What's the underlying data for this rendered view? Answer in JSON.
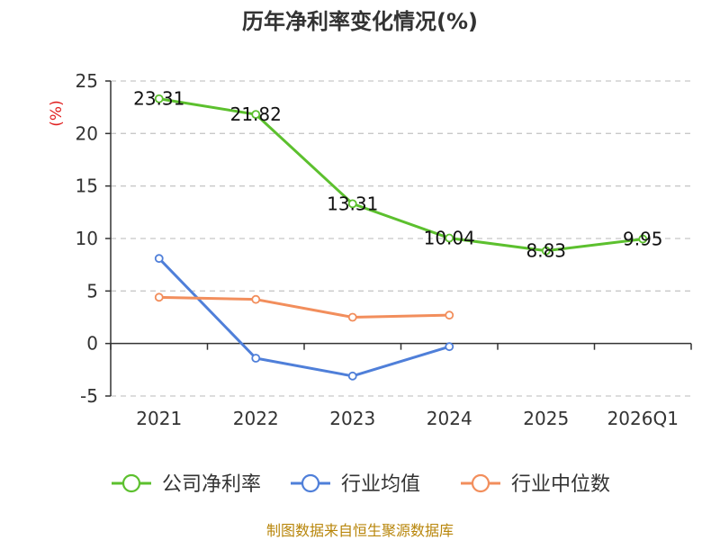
{
  "chart_data": {
    "type": "line",
    "title": "历年净利率变化情况(%)",
    "ylabel": "(%)",
    "categories": [
      "2021",
      "2022",
      "2023",
      "2024",
      "2025",
      "2026Q1"
    ],
    "ylim": [
      -5,
      25
    ],
    "yticks": [
      -5,
      0,
      5,
      10,
      15,
      20,
      25
    ],
    "grid": true,
    "legend_position": "bottom",
    "series": [
      {
        "name": "公司净利率",
        "color": "#5cc02e",
        "values": [
          23.31,
          21.82,
          13.31,
          10.04,
          8.83,
          9.95
        ],
        "labels": [
          "23.31",
          "21.82",
          "13.31",
          "10.04",
          "8.83",
          "9.95"
        ]
      },
      {
        "name": "行业均值",
        "color": "#4f7fd9",
        "values": [
          8.1,
          -1.4,
          -3.1,
          -0.3,
          null,
          null
        ]
      },
      {
        "name": "行业中位数",
        "color": "#f28e5c",
        "values": [
          4.4,
          4.2,
          2.5,
          2.7,
          null,
          null
        ]
      }
    ]
  },
  "source": "制图数据来自恒生聚源数据库"
}
